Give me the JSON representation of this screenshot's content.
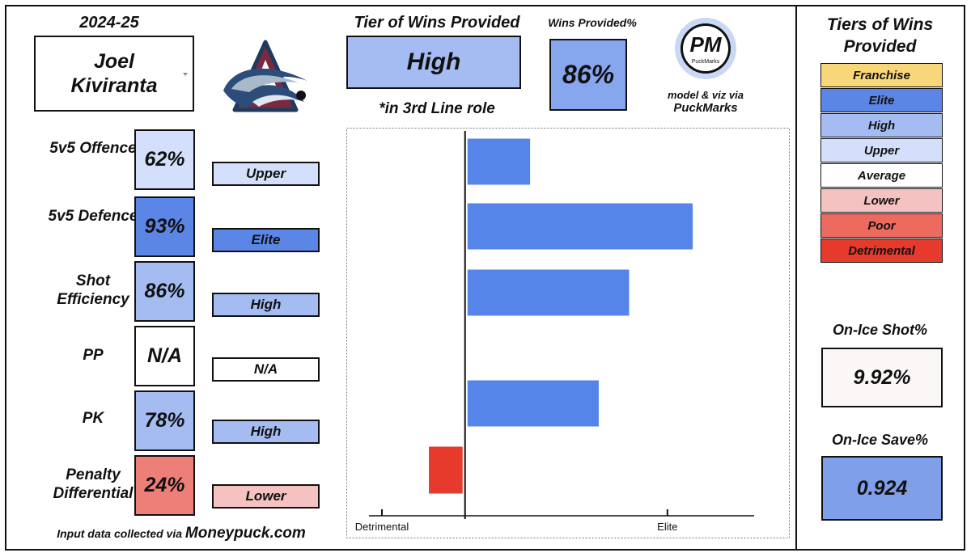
{
  "header": {
    "season": "2024-25",
    "player_first": "Joel",
    "player_last": "Kiviranta",
    "tier_title": "Tier of Wins Provided",
    "tier_value": "High",
    "tier_note": "*in 3rd Line role",
    "wins_title": "Wins Provided%",
    "wins_value": "86%",
    "pm_logo": "PM",
    "pm_logo_sub": "PuckMarks",
    "credit_line1": "model & viz via",
    "credit_line2": "PuckMarks"
  },
  "metrics": [
    {
      "label": "5v5 Offence",
      "pct": "62%",
      "tier": "Upper",
      "pct_color": "#d4e0fb",
      "tier_color": "#d4e0fb"
    },
    {
      "label": "5v5 Defence",
      "pct": "93%",
      "tier": "Elite",
      "pct_color": "#5b86e6",
      "tier_color": "#5b86e6"
    },
    {
      "label": "Shot Efficiency",
      "pct": "86%",
      "tier": "High",
      "pct_color": "#a4bcf1",
      "tier_color": "#a4bcf1"
    },
    {
      "label": "PP",
      "pct": "N/A",
      "tier": "N/A",
      "pct_color": "#ffffff",
      "tier_color": "#ffffff"
    },
    {
      "label": "PK",
      "pct": "78%",
      "tier": "High",
      "pct_color": "#a4bcf1",
      "tier_color": "#a4bcf1"
    },
    {
      "label": "Penalty Differential",
      "pct": "24%",
      "tier": "Lower",
      "pct_color": "#ee7f78",
      "tier_color": "#f4c2c1"
    }
  ],
  "footnote": {
    "prefix": "Input data collected via",
    "source": "Moneypuck.com"
  },
  "legend": {
    "title": "Tiers of Wins Provided",
    "items": [
      {
        "label": "Franchise",
        "color": "#f7d77a"
      },
      {
        "label": "Elite",
        "color": "#5b86e6"
      },
      {
        "label": "High",
        "color": "#a4bcf1"
      },
      {
        "label": "Upper",
        "color": "#d4e0fb"
      },
      {
        "label": "Average",
        "color": "#ffffff"
      },
      {
        "label": "Lower",
        "color": "#f4c2c1"
      },
      {
        "label": "Poor",
        "color": "#ec6a5e"
      },
      {
        "label": "Detrimental",
        "color": "#e53a2c"
      }
    ]
  },
  "on_ice": {
    "shot_title": "On-Ice Shot%",
    "shot_value": "9.92%",
    "save_title": "On-Ice Save%",
    "save_value": "0.924"
  },
  "chart_data": {
    "type": "bar",
    "orientation": "horizontal",
    "categories": [
      "5v5 Offence",
      "5v5 Defence",
      "Shot Efficiency",
      "PP",
      "PK",
      "Penalty Differential"
    ],
    "values": [
      0.9,
      3.15,
      2.27,
      null,
      1.85,
      -0.5
    ],
    "xlim": [
      -1.15,
      4.0
    ],
    "x_ticks": [
      {
        "value": -1.15,
        "label": "Detrimental"
      },
      {
        "value": 2.8,
        "label": "Elite"
      }
    ],
    "baseline": 0,
    "positive_color": "#5585e8",
    "negative_color": "#e53a2c",
    "grid": false
  }
}
